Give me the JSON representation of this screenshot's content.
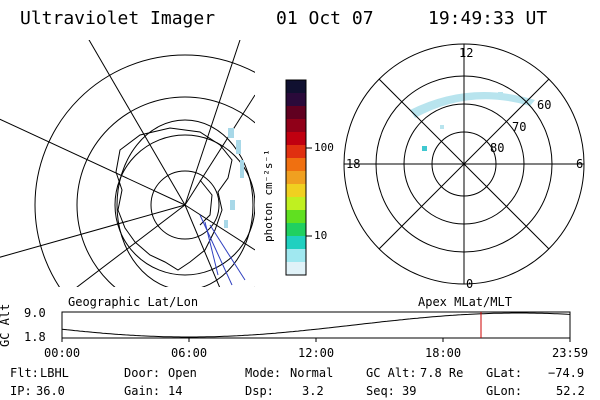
{
  "header": {
    "title": "Ultraviolet Imager",
    "date": "01 Oct 07",
    "time": "19:49:33 UT"
  },
  "colorbar": {
    "axis_label": "photon cm⁻²s⁻¹",
    "ticks": [
      "100",
      "10"
    ],
    "colors": [
      "#101030",
      "#2a0a3a",
      "#600020",
      "#900018",
      "#c00010",
      "#e03010",
      "#f07010",
      "#f0a020",
      "#f0d020",
      "#c0f020",
      "#60e020",
      "#20d060",
      "#20d0c0",
      "#a0e8f0",
      "#e0f2f8"
    ]
  },
  "geo_map": {
    "label": "Geographic Lat/Lon"
  },
  "polar_map": {
    "label": "Apex MLat/MLT",
    "mlt_labels": {
      "top": "12",
      "right": "6",
      "bottom": "0",
      "left": "18"
    },
    "lat_labels": [
      "60",
      "70",
      "80"
    ]
  },
  "altitude_plot": {
    "ylabel": "GC Alt",
    "yticks": [
      "9.0",
      "1.8"
    ],
    "xticks": [
      "00:00",
      "06:00",
      "12:00",
      "18:00",
      "23:59"
    ],
    "marker_color": "#cc0000"
  },
  "status": {
    "flt_label": "Flt:",
    "flt_value": "LBHL",
    "ip_label": "IP:",
    "ip_value": "36.0",
    "door_label": "Door:",
    "door_value": "Open",
    "gain_label": "Gain:",
    "gain_value": "14",
    "mode_label": "Mode:",
    "mode_value": "Normal",
    "dsp_label": "Dsp:",
    "dsp_value": "3.2",
    "gcalt_label": "GC Alt:",
    "gcalt_value": "7.8 Re",
    "seq_label": "Seq:",
    "seq_value": "39",
    "glat_label": "GLat:",
    "glat_value": "−74.9",
    "glon_label": "GLon:",
    "glon_value": "52.2"
  }
}
